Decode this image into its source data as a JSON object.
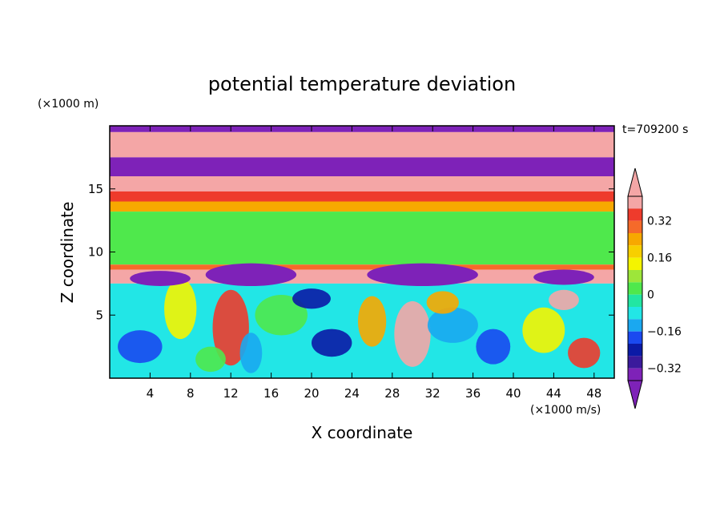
{
  "chart_data": {
    "type": "heatmap",
    "title": "potential temperature deviation",
    "xlabel": "X coordinate",
    "ylabel": "Z coordinate",
    "x_unit": "(×1000 m/s)",
    "y_unit": "(×1000 m)",
    "time_label": "t=709200 s",
    "xlim": [
      0,
      50
    ],
    "ylim": [
      0,
      20
    ],
    "x_ticks": [
      4,
      8,
      12,
      16,
      20,
      24,
      28,
      32,
      36,
      40,
      44,
      48
    ],
    "y_ticks": [
      5,
      10,
      15
    ],
    "colorbar": {
      "labeled_levels": [
        0.32,
        0.16,
        0,
        -0.16,
        -0.32
      ],
      "labels": [
        "0.32",
        "0.16",
        "0",
        "−0.16",
        "−0.32"
      ],
      "bins": [
        {
          "color": "#f4a6a6"
        },
        {
          "color": "#ee3b2c"
        },
        {
          "color": "#f56a2a"
        },
        {
          "color": "#f7a800"
        },
        {
          "color": "#f7cf00"
        },
        {
          "color": "#f4f400"
        },
        {
          "color": "#9de63a"
        },
        {
          "color": "#4fe84c"
        },
        {
          "color": "#22e6a2"
        },
        {
          "color": "#22e6e6"
        },
        {
          "color": "#1aa8f0"
        },
        {
          "color": "#1a49f0"
        },
        {
          "color": "#0b1aa6"
        },
        {
          "color": "#3a1a9c"
        },
        {
          "color": "#7e22b8"
        }
      ]
    },
    "bands": [
      {
        "z": [
          19.5,
          20
        ],
        "level_color": "#7e22b8"
      },
      {
        "z": [
          17.5,
          19.5
        ],
        "level_color": "#f4a6a6"
      },
      {
        "z": [
          16.0,
          17.5
        ],
        "level_color": "#7e22b8"
      },
      {
        "z": [
          14.8,
          16.0
        ],
        "level_color": "#f4a6a6"
      },
      {
        "z": [
          14.0,
          14.8
        ],
        "level_color": "#ee3b2c"
      },
      {
        "z": [
          13.2,
          14.0
        ],
        "level_color": "#f7a800"
      },
      {
        "z": [
          9.0,
          13.2
        ],
        "level_color": "#4fe84c"
      },
      {
        "z": [
          8.6,
          9.0
        ],
        "level_color": "#f56a2a"
      },
      {
        "z": [
          7.5,
          8.6
        ],
        "level_color": "#f4a6a6"
      },
      {
        "z": [
          0,
          7.5
        ],
        "level_color": "#22e6e6"
      }
    ]
  }
}
